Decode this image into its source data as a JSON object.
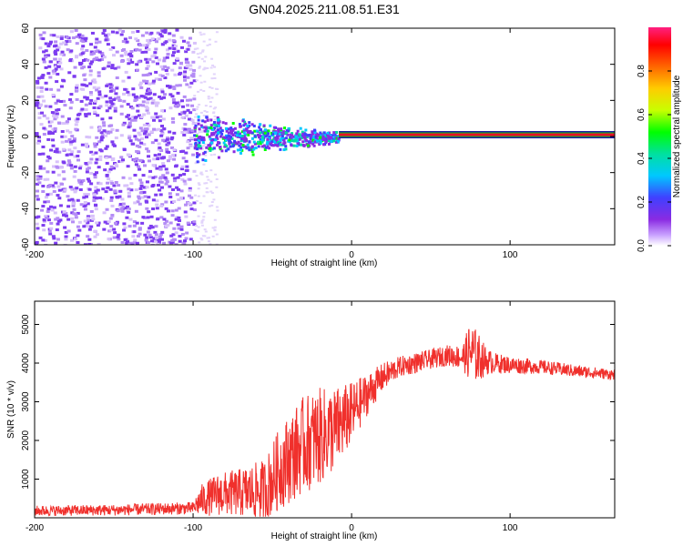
{
  "title": "GN04.2025.211.08.51.E31",
  "colors": {
    "noise": "#7d3cf0",
    "snr_line": "#f0302c",
    "carrier_core": "#e8102a",
    "carrier_edge": "#14c814"
  },
  "chart_data": [
    {
      "type": "heatmap",
      "name": "spectrogram",
      "xlabel": "Height of straight line (km)",
      "ylabel": "Frequency (Hz)",
      "xlim": [
        -200,
        166
      ],
      "ylim": [
        -60,
        60
      ],
      "x_ticks": [
        "-200",
        "-100",
        "0",
        "100"
      ],
      "y_ticks": [
        "-60",
        "-40",
        "-20",
        "0",
        "20",
        "40",
        "60"
      ],
      "colorbar": {
        "label": "Normalized spectral amplitude",
        "range": [
          0,
          1
        ],
        "ticks": [
          "0.0",
          "0.2",
          "0.4",
          "0.6",
          "0.8"
        ],
        "colormap": [
          "#ffffff",
          "#c8a0ff",
          "#8a2be2",
          "#4040ff",
          "#00c8ff",
          "#00e0a0",
          "#00ff00",
          "#c8ff00",
          "#ffcc00",
          "#ff6600",
          "#ff0000",
          "#ff2080"
        ]
      },
      "regions": [
        {
          "kind": "noise",
          "x": [
            -200,
            -100
          ],
          "freq": [
            -60,
            60
          ],
          "amplitude": 0.05
        },
        {
          "kind": "sparse_noise",
          "x": [
            -100,
            -85
          ],
          "freq": [
            -60,
            60
          ],
          "amplitude": 0.02
        },
        {
          "kind": "signal_cloud",
          "x": [
            -100,
            -8
          ],
          "freq_center": 0,
          "freq_halfwidth_start": 14,
          "freq_halfwidth_end": 3,
          "amplitude": 0.3
        },
        {
          "kind": "carrier",
          "x": [
            -8,
            166
          ],
          "freq": 1,
          "amplitude": 1.0
        }
      ]
    },
    {
      "type": "line",
      "name": "snr",
      "xlabel": "Height of straight line (km)",
      "ylabel": "SNR (10 * v/v)",
      "xlim": [
        -200,
        166
      ],
      "ylim": [
        0,
        5600
      ],
      "x_ticks": [
        "-200",
        "-100",
        "0",
        "100"
      ],
      "y_ticks": [
        "1000",
        "2000",
        "3000",
        "4000",
        "5000"
      ],
      "envelope": {
        "x": [
          -200,
          -150,
          -100,
          -95,
          -85,
          -70,
          -55,
          -45,
          -30,
          -20,
          -10,
          0,
          10,
          20,
          30,
          40,
          50,
          60,
          70,
          75,
          80,
          85,
          90,
          100,
          120,
          140,
          166
        ],
        "mean": [
          180,
          200,
          250,
          450,
          600,
          650,
          700,
          1300,
          1900,
          2100,
          2300,
          2700,
          3200,
          3650,
          3900,
          4000,
          4100,
          4200,
          4150,
          4300,
          4150,
          4050,
          4000,
          3950,
          3900,
          3800,
          3700
        ],
        "spread": [
          150,
          160,
          180,
          450,
          600,
          700,
          900,
          1200,
          1400,
          1400,
          1200,
          900,
          600,
          400,
          300,
          300,
          280,
          300,
          350,
          900,
          700,
          400,
          300,
          250,
          200,
          180,
          150
        ]
      }
    }
  ]
}
